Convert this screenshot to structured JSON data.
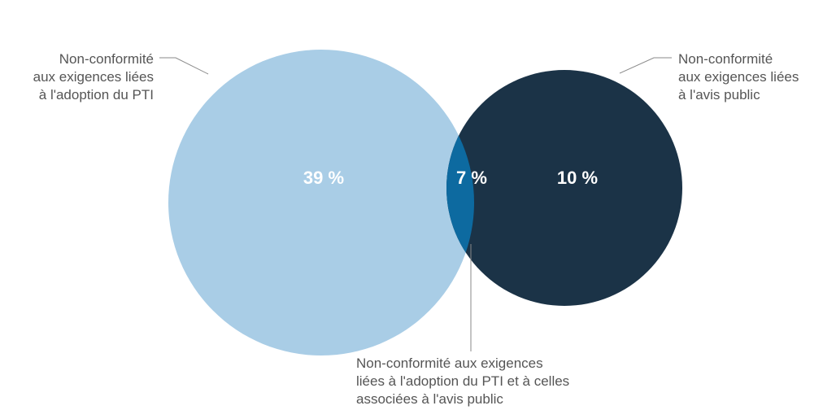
{
  "venn": {
    "sets": [
      {
        "id": "ptia",
        "lines": [
          "Non-conformité",
          "aux exigences liées",
          "à l'adoption du PTI"
        ],
        "value": "39 %",
        "color": "#a9cde6"
      },
      {
        "id": "avis",
        "lines": [
          "Non-conformité",
          "aux exigences liées",
          "à l'avis public"
        ],
        "value": "10 %",
        "color": "#1b3347"
      }
    ],
    "intersection": {
      "lines": [
        "Non-conformité aux exigences",
        "liées à l'adoption du PTI et à celles",
        "associées à l'avis public"
      ],
      "value": "7 %",
      "color": "#0d6aa0"
    },
    "leader_color": "#8a8a8a",
    "text_color": "#555555"
  }
}
